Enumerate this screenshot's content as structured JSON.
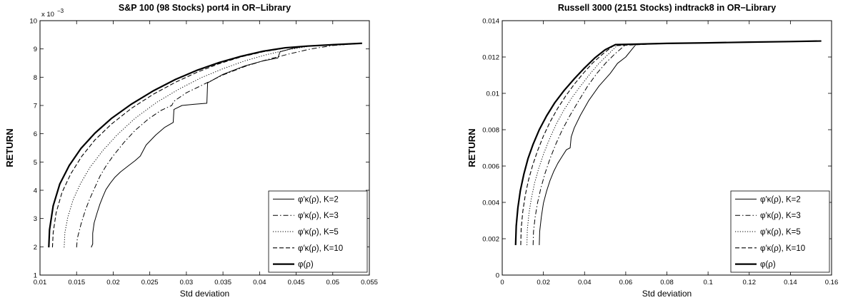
{
  "chart_data": [
    {
      "type": "line",
      "title": "S&P 100 (98 Stocks) port4 in OR−Library",
      "xlabel": "Std deviation",
      "ylabel": "RETURN",
      "xlim": [
        0.01,
        0.055
      ],
      "ylim": [
        1,
        10
      ],
      "y_multiplier_label": "x 10",
      "y_multiplier_exponent": "−3",
      "xticks": [
        "0.01",
        "0.015",
        "0.02",
        "0.025",
        "0.03",
        "0.035",
        "0.04",
        "0.045",
        "0.05",
        "0.055"
      ],
      "yticks": [
        "1",
        "2",
        "3",
        "4",
        "5",
        "6",
        "7",
        "8",
        "9",
        "10"
      ],
      "grid": false,
      "legend_position": "bottom-right",
      "series": [
        {
          "name": "φ′κ(ρ), K=2",
          "style": "solid-thin",
          "x": [
            0.017,
            0.0172,
            0.0172,
            0.0174,
            0.0178,
            0.0182,
            0.0186,
            0.019,
            0.0196,
            0.0202,
            0.021,
            0.022,
            0.023,
            0.0237,
            0.0245,
            0.0258,
            0.027,
            0.0282,
            0.0283,
            0.0294,
            0.031,
            0.0328,
            0.0329,
            0.035,
            0.038,
            0.0405,
            0.0425,
            0.0428,
            0.0445,
            0.0465,
            0.05,
            0.054
          ],
          "y": [
            1.98,
            2.1,
            2.48,
            2.85,
            3.2,
            3.52,
            3.78,
            4.02,
            4.25,
            4.45,
            4.65,
            4.85,
            5.05,
            5.21,
            5.6,
            5.95,
            6.22,
            6.4,
            6.86,
            7.0,
            7.04,
            7.08,
            7.8,
            8.1,
            8.4,
            8.58,
            8.68,
            8.9,
            9.02,
            9.1,
            9.15,
            9.2
          ]
        },
        {
          "name": "φ′κ(ρ), K=3",
          "style": "dash-dot",
          "x": [
            0.015,
            0.0151,
            0.0156,
            0.0162,
            0.0168,
            0.0175,
            0.0182,
            0.019,
            0.02,
            0.0215,
            0.023,
            0.0248,
            0.0265,
            0.028,
            0.0283,
            0.03,
            0.032,
            0.035,
            0.038,
            0.041,
            0.044,
            0.047,
            0.05,
            0.054
          ],
          "y": [
            1.98,
            2.3,
            2.8,
            3.3,
            3.7,
            4.1,
            4.5,
            4.85,
            5.22,
            5.7,
            6.12,
            6.52,
            6.82,
            7.0,
            7.15,
            7.45,
            7.7,
            8.08,
            8.38,
            8.62,
            8.82,
            9.0,
            9.12,
            9.2
          ]
        },
        {
          "name": "φ′κ(ρ), K=5",
          "style": "dotted",
          "x": [
            0.0133,
            0.0134,
            0.0138,
            0.0145,
            0.0155,
            0.0168,
            0.0185,
            0.0205,
            0.023,
            0.026,
            0.029,
            0.032,
            0.035,
            0.038,
            0.041,
            0.044,
            0.047,
            0.05,
            0.054
          ],
          "y": [
            1.98,
            2.5,
            3.05,
            3.65,
            4.22,
            4.8,
            5.38,
            5.95,
            6.55,
            7.12,
            7.58,
            7.98,
            8.3,
            8.58,
            8.8,
            8.98,
            9.1,
            9.16,
            9.2
          ]
        },
        {
          "name": "φ′κ(ρ), K=10",
          "style": "dashed",
          "x": [
            0.0117,
            0.0118,
            0.0122,
            0.013,
            0.0142,
            0.0157,
            0.0175,
            0.0198,
            0.0225,
            0.0255,
            0.0285,
            0.0315,
            0.0345,
            0.0375,
            0.0405,
            0.0435,
            0.0465,
            0.05,
            0.054
          ],
          "y": [
            1.98,
            2.5,
            3.2,
            3.92,
            4.58,
            5.2,
            5.78,
            6.35,
            6.9,
            7.4,
            7.82,
            8.18,
            8.48,
            8.72,
            8.9,
            9.03,
            9.1,
            9.15,
            9.2
          ]
        },
        {
          "name": "φ(ρ)",
          "style": "solid-thick",
          "x": [
            0.0112,
            0.0113,
            0.0118,
            0.0127,
            0.014,
            0.0156,
            0.0175,
            0.0198,
            0.0225,
            0.0255,
            0.0285,
            0.0315,
            0.0345,
            0.0375,
            0.0405,
            0.0435,
            0.0465,
            0.05,
            0.054
          ],
          "y": [
            1.98,
            2.6,
            3.45,
            4.22,
            4.88,
            5.48,
            6.02,
            6.55,
            7.05,
            7.52,
            7.92,
            8.25,
            8.52,
            8.74,
            8.92,
            9.04,
            9.1,
            9.15,
            9.2
          ]
        }
      ]
    },
    {
      "type": "line",
      "title": "Russell 3000 (2151 Stocks) indtrack8 in OR−Library",
      "xlabel": "Std deviation",
      "ylabel": "RETURN",
      "xlim": [
        0,
        0.16
      ],
      "ylim": [
        0,
        0.014
      ],
      "xticks": [
        "0",
        "0.02",
        "0.04",
        "0.06",
        "0.08",
        "0.1",
        "0.12",
        "0.14",
        "0.16"
      ],
      "yticks": [
        "0",
        "0.002",
        "0.004",
        "0.006",
        "0.008",
        "0.01",
        "0.012",
        "0.014"
      ],
      "grid": false,
      "legend_position": "bottom-right",
      "series": [
        {
          "name": "φ′κ(ρ), K=2",
          "style": "solid-thin",
          "x": [
            0.018,
            0.0182,
            0.019,
            0.02,
            0.0215,
            0.0232,
            0.025,
            0.027,
            0.0292,
            0.0312,
            0.033,
            0.0335,
            0.035,
            0.038,
            0.042,
            0.047,
            0.0525,
            0.056,
            0.06,
            0.065,
            0.08,
            0.1,
            0.12,
            0.14,
            0.155
          ],
          "y": [
            0.00165,
            0.0024,
            0.0032,
            0.00395,
            0.0046,
            0.0052,
            0.0057,
            0.00615,
            0.00655,
            0.0069,
            0.007,
            0.0076,
            0.0081,
            0.0088,
            0.0096,
            0.0104,
            0.0111,
            0.01165,
            0.012,
            0.0127,
            0.01275,
            0.01278,
            0.01282,
            0.01285,
            0.01288
          ]
        },
        {
          "name": "φ′κ(ρ), K=3",
          "style": "dash-dot",
          "x": [
            0.015,
            0.0152,
            0.016,
            0.0172,
            0.0188,
            0.0208,
            0.0232,
            0.026,
            0.0292,
            0.033,
            0.0372,
            0.0415,
            0.046,
            0.0505,
            0.055,
            0.06,
            0.08,
            0.1,
            0.12,
            0.14,
            0.155
          ],
          "y": [
            0.00165,
            0.0024,
            0.0032,
            0.004,
            0.0048,
            0.0056,
            0.0064,
            0.0072,
            0.008,
            0.0088,
            0.0096,
            0.0104,
            0.0111,
            0.0117,
            0.0122,
            0.01268,
            0.01275,
            0.01278,
            0.01282,
            0.01285,
            0.01288
          ]
        },
        {
          "name": "φ′κ(ρ), K=5",
          "style": "dotted",
          "x": [
            0.012,
            0.0122,
            0.013,
            0.0142,
            0.0158,
            0.0178,
            0.0202,
            0.023,
            0.0262,
            0.0298,
            0.0338,
            0.038,
            0.0425,
            0.047,
            0.0515,
            0.056,
            0.08,
            0.1,
            0.12,
            0.14,
            0.155
          ],
          "y": [
            0.00165,
            0.0025,
            0.0034,
            0.00425,
            0.0051,
            0.0059,
            0.0067,
            0.0075,
            0.0083,
            0.00905,
            0.00975,
            0.0104,
            0.01105,
            0.01165,
            0.01215,
            0.01265,
            0.01275,
            0.01278,
            0.01282,
            0.01285,
            0.01288
          ]
        },
        {
          "name": "φ′κ(ρ), K=10",
          "style": "dashed",
          "x": [
            0.009,
            0.0092,
            0.01,
            0.0112,
            0.0128,
            0.0148,
            0.0172,
            0.02,
            0.0232,
            0.0268,
            0.0308,
            0.035,
            0.0395,
            0.044,
            0.049,
            0.054,
            0.08,
            0.1,
            0.12,
            0.14,
            0.155
          ],
          "y": [
            0.00165,
            0.00255,
            0.0035,
            0.0044,
            0.00525,
            0.00605,
            0.00685,
            0.00765,
            0.00842,
            0.00915,
            0.00985,
            0.0105,
            0.01112,
            0.01168,
            0.01218,
            0.01262,
            0.01275,
            0.01278,
            0.01282,
            0.01285,
            0.01288
          ]
        },
        {
          "name": "φ(ρ)",
          "style": "solid-thick",
          "x": [
            0.0065,
            0.0068,
            0.0076,
            0.0088,
            0.0105,
            0.0125,
            0.015,
            0.018,
            0.0215,
            0.0255,
            0.03,
            0.035,
            0.04,
            0.045,
            0.05,
            0.055,
            0.08,
            0.1,
            0.12,
            0.14,
            0.155
          ],
          "y": [
            0.00165,
            0.0027,
            0.0037,
            0.00465,
            0.00555,
            0.0064,
            0.0072,
            0.008,
            0.00875,
            0.00948,
            0.01015,
            0.0108,
            0.0114,
            0.01195,
            0.0124,
            0.01268,
            0.01275,
            0.01278,
            0.01282,
            0.01285,
            0.01288
          ]
        }
      ]
    }
  ]
}
